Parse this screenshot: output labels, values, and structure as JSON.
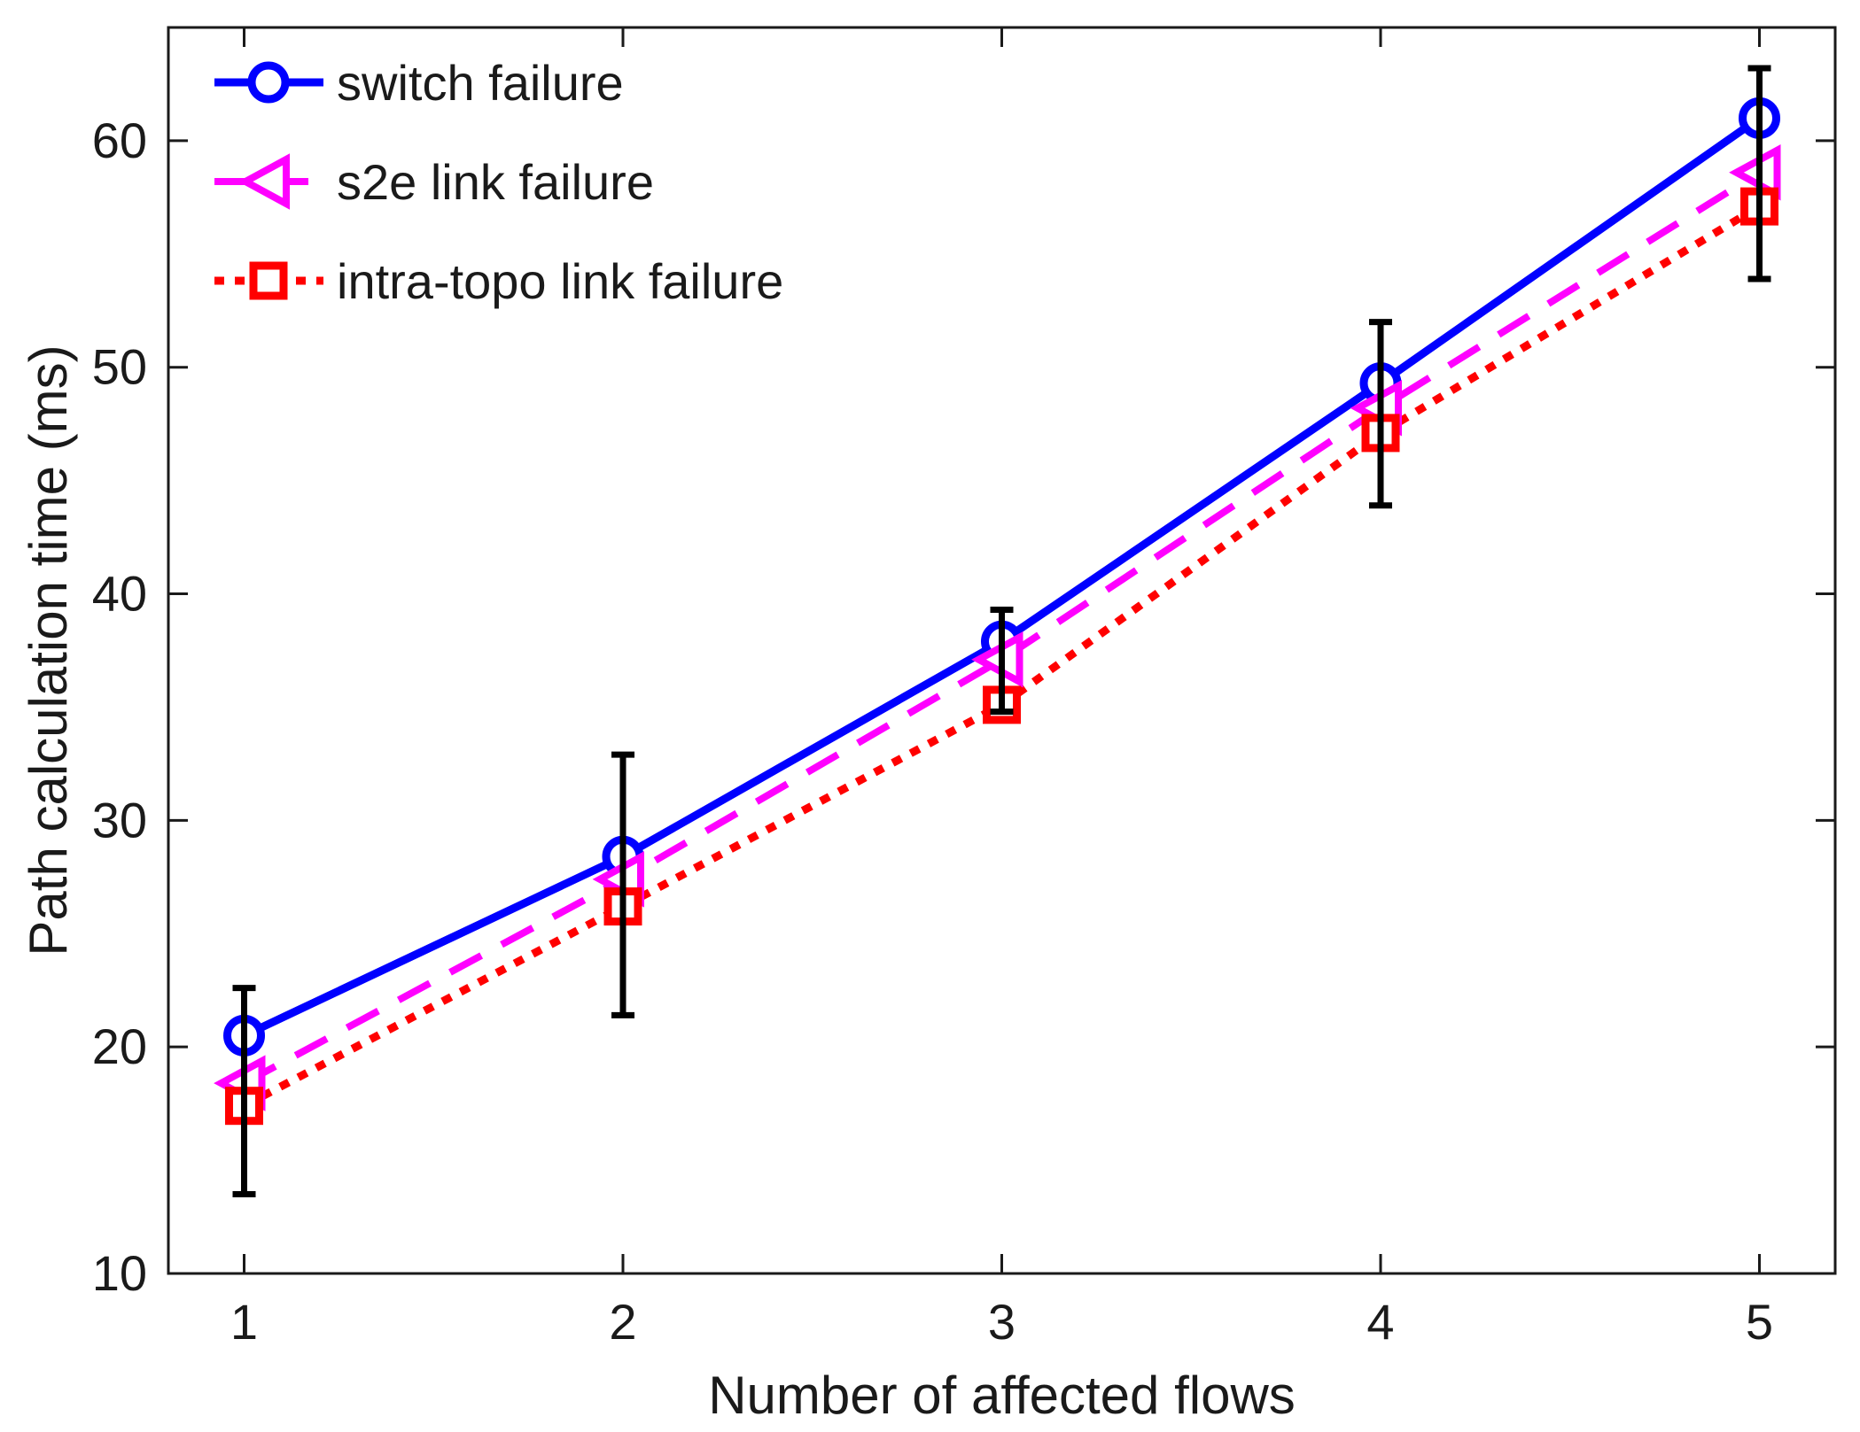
{
  "chart_data": {
    "type": "line",
    "title": "",
    "xlabel": "Number of affected flows",
    "ylabel": "Path calculation time (ms)",
    "x": [
      1,
      2,
      3,
      4,
      5
    ],
    "xlim": [
      0.8,
      5.2
    ],
    "ylim": [
      10,
      65
    ],
    "xticks": [
      "1",
      "2",
      "3",
      "4",
      "5"
    ],
    "yticks": [
      "10",
      "20",
      "30",
      "40",
      "50",
      "60"
    ],
    "grid": false,
    "legend_position": "top-left-inside",
    "legend_border": false,
    "series": [
      {
        "name": "switch failure",
        "color": "#0000ff",
        "line_style": "solid",
        "marker": "circle",
        "values": [
          20.5,
          28.4,
          37.9,
          49.3,
          61.0
        ]
      },
      {
        "name": "s2e link failure",
        "color": "#ff00ff",
        "line_style": "dashed",
        "marker": "triangle-left",
        "values": [
          18.4,
          27.4,
          37.1,
          48.2,
          58.6
        ]
      },
      {
        "name": "intra-topo link failure",
        "color": "#ff0000",
        "line_style": "dotted",
        "marker": "square",
        "values": [
          17.4,
          26.2,
          35.1,
          47.1,
          57.1
        ]
      }
    ],
    "error_bars": {
      "color": "#000000",
      "x": [
        1,
        2,
        3,
        4,
        5
      ],
      "low": [
        13.5,
        21.4,
        34.8,
        43.9,
        53.9
      ],
      "high": [
        22.6,
        32.9,
        39.3,
        52.0,
        63.2
      ]
    }
  },
  "colors": {
    "axis": "#1a1a1a",
    "text": "#1a1a1a",
    "background": "#ffffff"
  }
}
